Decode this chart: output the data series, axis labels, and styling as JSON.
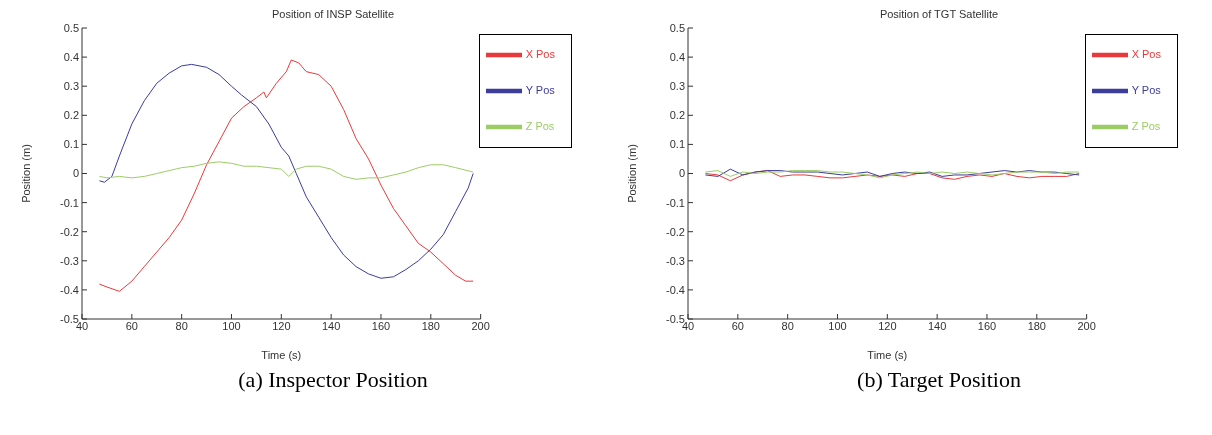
{
  "chart_data": [
    {
      "type": "line",
      "title": "Position of INSP Satellite",
      "xlabel": "Time (s)",
      "ylabel": "Position (m)",
      "annotations": [
        "(a) Inspector Position"
      ],
      "xlim": [
        40,
        200
      ],
      "xticks": [
        40,
        60,
        80,
        100,
        120,
        140,
        160,
        180,
        200
      ],
      "ylim": [
        -0.5,
        0.5
      ],
      "yticks": [
        -0.5,
        -0.4,
        -0.3,
        -0.2,
        -0.1,
        0,
        0.1,
        0.2,
        0.3,
        0.4,
        0.5
      ],
      "legend": "top right",
      "grid": false,
      "marker": "none",
      "series": [
        {
          "name": "X Pos",
          "color": "#e8393c",
          "x": [
            47,
            50,
            55,
            60,
            65,
            70,
            75,
            80,
            85,
            90,
            95,
            100,
            105,
            110,
            113,
            114,
            118,
            122,
            124,
            127,
            130,
            135,
            140,
            145,
            150,
            155,
            160,
            165,
            170,
            175,
            180,
            185,
            190,
            194,
            197
          ],
          "values": [
            -0.38,
            -0.39,
            -0.405,
            -0.37,
            -0.32,
            -0.27,
            -0.22,
            -0.16,
            -0.07,
            0.03,
            0.11,
            0.19,
            0.23,
            0.26,
            0.28,
            0.26,
            0.31,
            0.35,
            0.39,
            0.38,
            0.35,
            0.34,
            0.3,
            0.22,
            0.12,
            0.05,
            -0.04,
            -0.12,
            -0.18,
            -0.24,
            -0.27,
            -0.31,
            -0.35,
            -0.37,
            -0.37
          ]
        },
        {
          "name": "Y Pos",
          "color": "#3c3c9c",
          "x": [
            47,
            49,
            52,
            55,
            60,
            65,
            70,
            75,
            80,
            84,
            90,
            95,
            100,
            104,
            110,
            115,
            120,
            123,
            126,
            130,
            135,
            140,
            145,
            150,
            155,
            160,
            165,
            170,
            175,
            180,
            185,
            190,
            195,
            197
          ],
          "values": [
            -0.025,
            -0.03,
            -0.01,
            0.06,
            0.17,
            0.25,
            0.31,
            0.345,
            0.37,
            0.375,
            0.365,
            0.34,
            0.3,
            0.27,
            0.23,
            0.17,
            0.09,
            0.06,
            0,
            -0.08,
            -0.15,
            -0.22,
            -0.28,
            -0.32,
            -0.345,
            -0.36,
            -0.355,
            -0.33,
            -0.3,
            -0.26,
            -0.21,
            -0.13,
            -0.05,
            0
          ]
        },
        {
          "name": "Z Pos",
          "color": "#9ccc66",
          "x": [
            47,
            50,
            55,
            60,
            65,
            70,
            75,
            80,
            85,
            90,
            95,
            100,
            105,
            110,
            115,
            120,
            123,
            126,
            130,
            135,
            140,
            145,
            150,
            155,
            160,
            165,
            170,
            175,
            180,
            185,
            190,
            197
          ],
          "values": [
            -0.01,
            -0.015,
            -0.01,
            -0.015,
            -0.01,
            0,
            0.01,
            0.02,
            0.025,
            0.035,
            0.04,
            0.035,
            0.025,
            0.025,
            0.02,
            0.015,
            -0.01,
            0.015,
            0.025,
            0.025,
            0.015,
            -0.01,
            -0.02,
            -0.015,
            -0.015,
            -0.005,
            0.005,
            0.02,
            0.03,
            0.03,
            0.02,
            0.005
          ]
        }
      ]
    },
    {
      "type": "line",
      "title": "Position of TGT Satellite",
      "xlabel": "Time (s)",
      "ylabel": "Position (m)",
      "annotations": [
        "(b) Target Position"
      ],
      "xlim": [
        40,
        200
      ],
      "xticks": [
        40,
        60,
        80,
        100,
        120,
        140,
        160,
        180,
        200
      ],
      "ylim": [
        -0.5,
        0.5
      ],
      "yticks": [
        -0.5,
        -0.4,
        -0.3,
        -0.2,
        -0.1,
        0,
        0.1,
        0.2,
        0.3,
        0.4,
        0.5
      ],
      "legend": "top right",
      "grid": false,
      "marker": "none",
      "x": [
        47,
        52,
        57,
        62,
        67,
        72,
        77,
        82,
        87,
        92,
        97,
        102,
        107,
        112,
        117,
        122,
        127,
        132,
        137,
        142,
        147,
        152,
        157,
        162,
        167,
        172,
        177,
        182,
        187,
        192,
        197
      ],
      "series": [
        {
          "name": "X Pos",
          "color": "#e8393c",
          "values": [
            0,
            -0.005,
            -0.025,
            -0.005,
            0.005,
            0.01,
            -0.01,
            -0.005,
            -0.005,
            -0.01,
            -0.015,
            -0.015,
            -0.01,
            -0.005,
            -0.01,
            -0.005,
            -0.01,
            0,
            0,
            -0.015,
            -0.02,
            -0.01,
            -0.005,
            -0.01,
            0,
            -0.01,
            -0.015,
            -0.01,
            -0.01,
            -0.01,
            0
          ]
        },
        {
          "name": "Y Pos",
          "color": "#3c3c9c",
          "values": [
            -0.005,
            -0.01,
            0.015,
            -0.005,
            0.005,
            0.01,
            0.01,
            0.005,
            0.005,
            0.005,
            0,
            -0.005,
            0,
            0.005,
            -0.01,
            0,
            0.005,
            0,
            0.005,
            -0.01,
            -0.005,
            -0.005,
            0,
            0.005,
            0.01,
            0.005,
            0.01,
            0.005,
            0.005,
            0,
            -0.005
          ]
        },
        {
          "name": "Z Pos",
          "color": "#9ccc66",
          "values": [
            0.005,
            0.01,
            -0.01,
            0.005,
            0,
            0.005,
            0.005,
            0.01,
            0.01,
            0.01,
            0.005,
            0.005,
            0,
            -0.005,
            -0.015,
            -0.005,
            0,
            0.005,
            0,
            0.005,
            0,
            0.005,
            0,
            -0.005,
            0,
            0.005,
            0.005,
            0.005,
            0,
            0.005,
            0.005
          ]
        }
      ]
    }
  ]
}
